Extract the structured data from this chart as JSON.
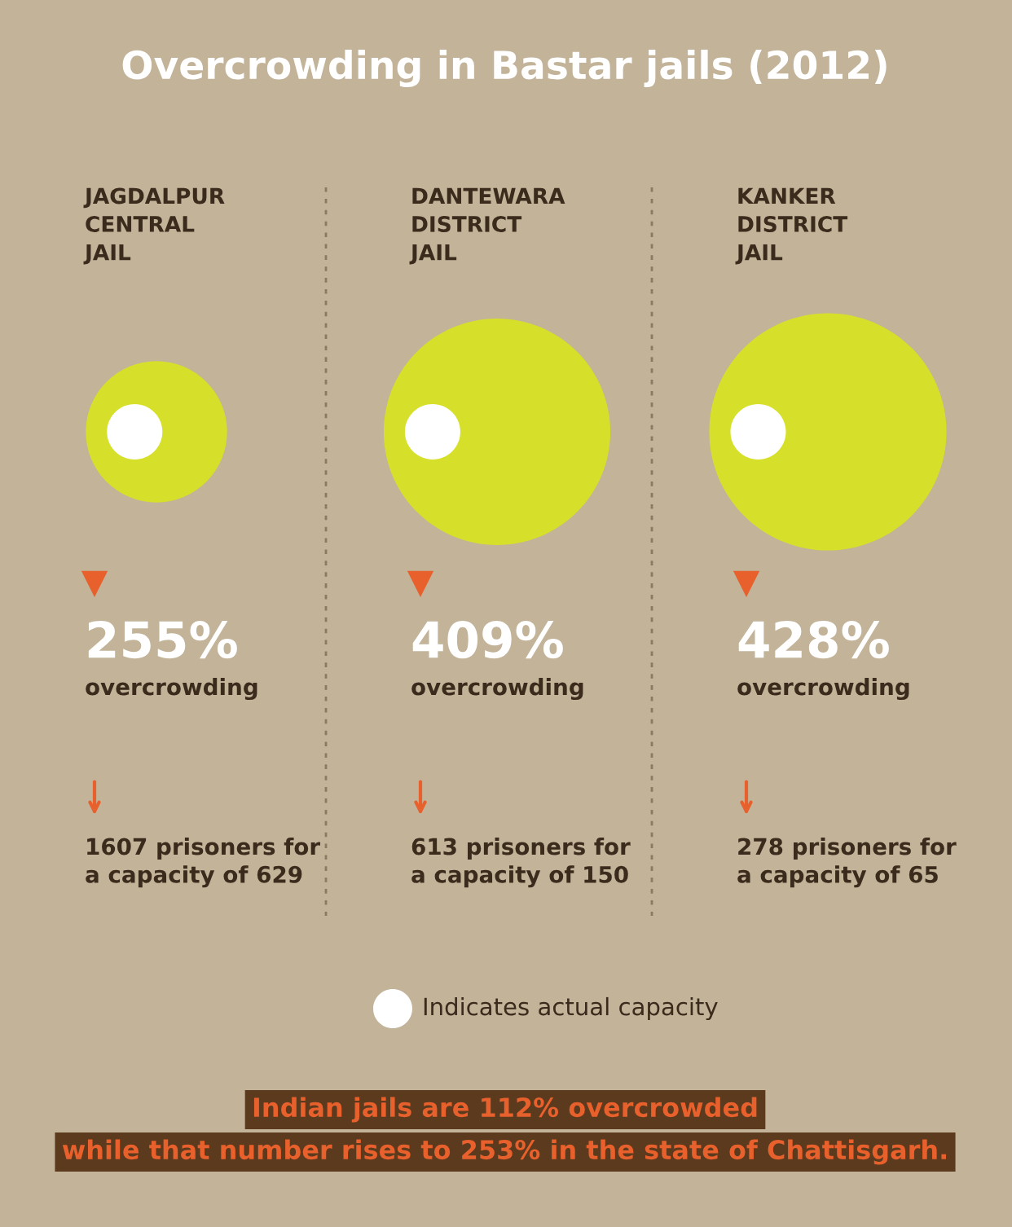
{
  "chart_data": {
    "type": "other",
    "title": "Overcrowding in Bastar jails (2012)",
    "categories": [
      "JAGDALPUR\nCENTRAL\nJAIL",
      "DANTEWARA\nDISTRICT\nJAIL",
      "KANKER\nDISTRICT\nJAIL"
    ],
    "values": [
      255,
      409,
      428
    ],
    "value_labels": [
      "255%",
      "409%",
      "428%"
    ],
    "colors": [
      "#d6e02a",
      "#d6e02a",
      "#d6e02a"
    ],
    "annotations": [
      "overcrowding",
      "1607 prisoners for\na capacity of 629",
      "overcrowding",
      "613 prisoners for\na capacity of 150",
      "overcrowding",
      "278 prisoners for\na capacity of 65",
      "Indicates actual capacity",
      "Indian jails are 112% overcrowded",
      "while that number rises to 253% in the state of Chattisgarh."
    ]
  }
}
